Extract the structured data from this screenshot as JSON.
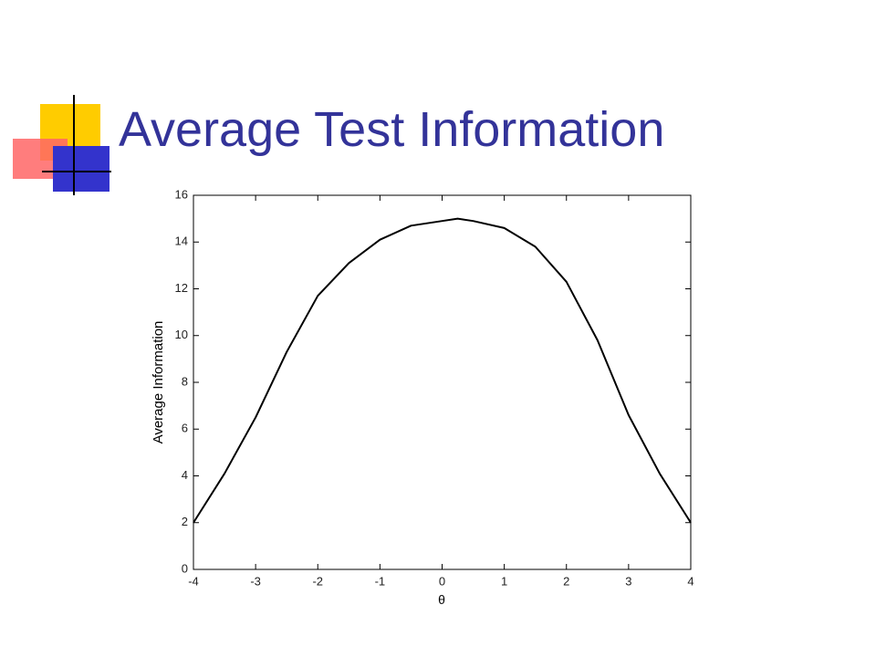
{
  "chart_data": {
    "type": "line",
    "title": "Average Test Information",
    "x_label": "θ",
    "y_label": "Average Information",
    "x": [
      -4,
      -3.5,
      -3,
      -2.5,
      -2,
      -1.5,
      -1,
      -0.5,
      0,
      0.25,
      0.5,
      1,
      1.5,
      2,
      2.5,
      3,
      3.5,
      4
    ],
    "values": [
      2.0,
      4.1,
      6.5,
      9.3,
      11.7,
      13.1,
      14.1,
      14.7,
      14.9,
      15.0,
      14.9,
      14.6,
      13.8,
      12.3,
      9.8,
      6.6,
      4.1,
      2.0
    ],
    "color": "#000000",
    "xlim": [
      -4,
      4
    ],
    "xticks": [
      -4,
      -3,
      -2,
      -1,
      0,
      1,
      2,
      3,
      4
    ],
    "ylim": [
      0,
      16
    ],
    "yticks": [
      0,
      2,
      4,
      6,
      8,
      10,
      12,
      14,
      16
    ]
  }
}
